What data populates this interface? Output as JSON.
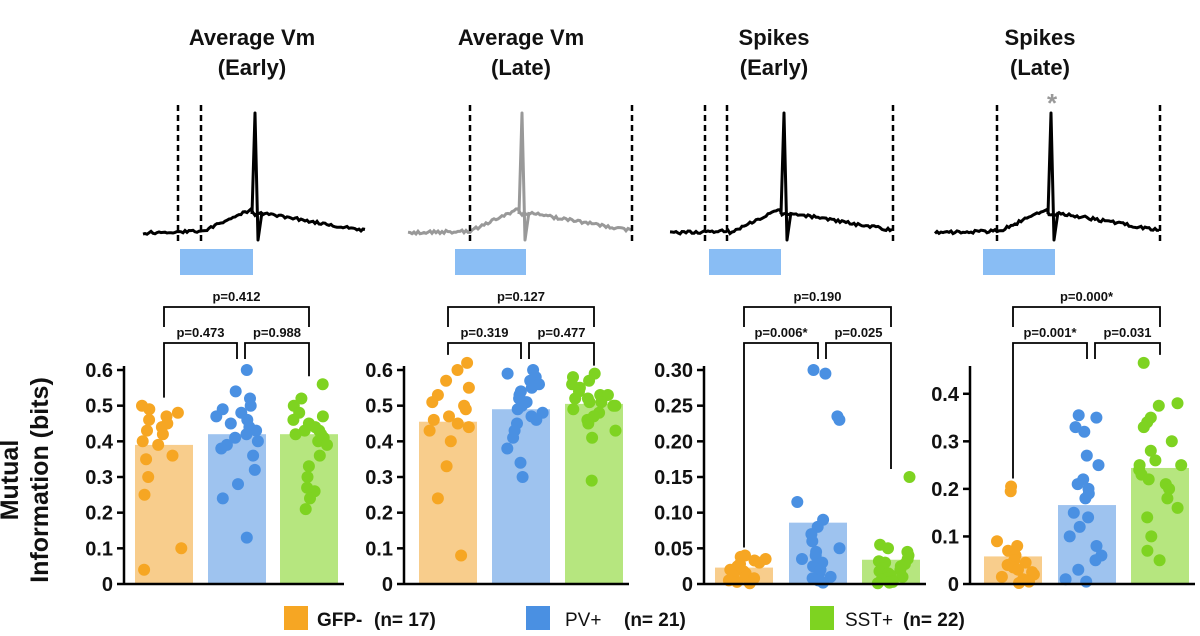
{
  "y_axis_label_line1": "Mutual",
  "y_axis_label_line2": "Information (bits)",
  "groups": [
    {
      "name": "GFP-",
      "n_label": "(n= 17)",
      "color": "#f6a623",
      "bar_color": "#f8cd8c"
    },
    {
      "name": "PV+",
      "n_label": "(n= 21)",
      "color": "#4a90e2",
      "bar_color": "#9ec3ef"
    },
    {
      "name": "SST+",
      "n_label": "(n= 22)",
      "color": "#7ed321",
      "bar_color": "#b6e67f"
    }
  ],
  "panels": [
    {
      "title_line1": "Average Vm",
      "title_line2": "(Early)",
      "trace_color": "#000000",
      "star": ""
    },
    {
      "title_line1": "Average Vm",
      "title_line2": "(Late)",
      "trace_color": "#999999",
      "star": ""
    },
    {
      "title_line1": "Spikes",
      "title_line2": "(Early)",
      "trace_color": "#000000",
      "star": ""
    },
    {
      "title_line1": "Spikes",
      "title_line2": "(Late)",
      "trace_color": "#000000",
      "star": "*"
    }
  ],
  "chart_data": [
    {
      "type": "bar",
      "title": "Average Vm (Early)",
      "ylabel": "Mutual Information (bits)",
      "ylim": [
        0,
        0.6
      ],
      "yticks": [
        "0",
        "0.1",
        "0.2",
        "0.3",
        "0.4",
        "0.5",
        "0.6"
      ],
      "categories": [
        "GFP-",
        "PV+",
        "SST+"
      ],
      "values": [
        0.39,
        0.42,
        0.42
      ],
      "points": [
        [
          0.5,
          0.49,
          0.48,
          0.47,
          0.46,
          0.45,
          0.44,
          0.43,
          0.42,
          0.4,
          0.39,
          0.36,
          0.35,
          0.3,
          0.25,
          0.1,
          0.04
        ],
        [
          0.6,
          0.54,
          0.52,
          0.5,
          0.49,
          0.48,
          0.47,
          0.46,
          0.45,
          0.44,
          0.43,
          0.42,
          0.41,
          0.4,
          0.39,
          0.38,
          0.36,
          0.32,
          0.28,
          0.24,
          0.13
        ],
        [
          0.56,
          0.52,
          0.5,
          0.48,
          0.47,
          0.46,
          0.45,
          0.44,
          0.43,
          0.43,
          0.42,
          0.42,
          0.41,
          0.4,
          0.39,
          0.36,
          0.33,
          0.3,
          0.27,
          0.26,
          0.24,
          0.21
        ]
      ],
      "comparisons": [
        {
          "from": 0,
          "to": 2,
          "label": "p=0.412"
        },
        {
          "from": 0,
          "to": 1,
          "label": "p=0.473"
        },
        {
          "from": 1,
          "to": 2,
          "label": "p=0.988"
        }
      ]
    },
    {
      "type": "bar",
      "title": "Average Vm (Late)",
      "ylabel": "",
      "ylim": [
        0,
        0.6
      ],
      "yticks": [
        "0",
        "0.1",
        "0.2",
        "0.3",
        "0.4",
        "0.5",
        "0.6"
      ],
      "categories": [
        "GFP-",
        "PV+",
        "SST+"
      ],
      "values": [
        0.455,
        0.49,
        0.505
      ],
      "points": [
        [
          0.62,
          0.6,
          0.57,
          0.55,
          0.53,
          0.51,
          0.5,
          0.49,
          0.47,
          0.46,
          0.45,
          0.44,
          0.43,
          0.4,
          0.33,
          0.24,
          0.08
        ],
        [
          0.6,
          0.59,
          0.58,
          0.57,
          0.56,
          0.55,
          0.54,
          0.53,
          0.52,
          0.51,
          0.5,
          0.49,
          0.48,
          0.47,
          0.46,
          0.45,
          0.43,
          0.41,
          0.38,
          0.34,
          0.3
        ],
        [
          0.59,
          0.58,
          0.57,
          0.56,
          0.55,
          0.54,
          0.53,
          0.53,
          0.52,
          0.52,
          0.51,
          0.51,
          0.5,
          0.5,
          0.49,
          0.48,
          0.47,
          0.46,
          0.45,
          0.43,
          0.41,
          0.29
        ]
      ],
      "comparisons": [
        {
          "from": 0,
          "to": 2,
          "label": "p=0.127"
        },
        {
          "from": 0,
          "to": 1,
          "label": "p=0.319"
        },
        {
          "from": 1,
          "to": 2,
          "label": "p=0.477"
        }
      ]
    },
    {
      "type": "bar",
      "title": "Spikes (Early)",
      "ylabel": "",
      "ylim": [
        0,
        0.3
      ],
      "yticks": [
        "0",
        "0.05",
        "0.10",
        "0.15",
        "0.20",
        "0.25",
        "0.30"
      ],
      "categories": [
        "GFP-",
        "PV+",
        "SST+"
      ],
      "values": [
        0.023,
        0.086,
        0.034
      ],
      "points": [
        [
          0.04,
          0.038,
          0.035,
          0.033,
          0.03,
          0.028,
          0.025,
          0.022,
          0.02,
          0.018,
          0.015,
          0.012,
          0.01,
          0.008,
          0.005,
          0.003,
          0.001
        ],
        [
          0.3,
          0.295,
          0.235,
          0.23,
          0.115,
          0.09,
          0.08,
          0.07,
          0.06,
          0.05,
          0.045,
          0.04,
          0.035,
          0.03,
          0.025,
          0.02,
          0.015,
          0.01,
          0.008,
          0.005,
          0.002
        ],
        [
          0.15,
          0.055,
          0.05,
          0.045,
          0.04,
          0.035,
          0.032,
          0.03,
          0.028,
          0.025,
          0.022,
          0.02,
          0.018,
          0.015,
          0.012,
          0.01,
          0.008,
          0.006,
          0.004,
          0.003,
          0.002,
          0.001
        ]
      ],
      "comparisons": [
        {
          "from": 0,
          "to": 2,
          "label": "p=0.190"
        },
        {
          "from": 0,
          "to": 1,
          "label": "p=0.006*"
        },
        {
          "from": 1,
          "to": 2,
          "label": "p=0.025"
        }
      ]
    },
    {
      "type": "bar",
      "title": "Spikes (Late)",
      "ylabel": "",
      "ylim": [
        0,
        0.45
      ],
      "yticks": [
        "0",
        "0.1",
        "0.2",
        "0.3",
        "0.4"
      ],
      "categories": [
        "GFP-",
        "PV+",
        "SST+"
      ],
      "values": [
        0.058,
        0.166,
        0.244
      ],
      "points": [
        [
          0.205,
          0.195,
          0.09,
          0.08,
          0.07,
          0.06,
          0.05,
          0.045,
          0.04,
          0.035,
          0.03,
          0.025,
          0.02,
          0.015,
          0.01,
          0.005,
          0.002
        ],
        [
          0.355,
          0.35,
          0.33,
          0.32,
          0.27,
          0.25,
          0.22,
          0.21,
          0.2,
          0.19,
          0.18,
          0.15,
          0.14,
          0.12,
          0.1,
          0.08,
          0.06,
          0.05,
          0.03,
          0.01,
          0.005
        ],
        [
          0.465,
          0.38,
          0.375,
          0.35,
          0.34,
          0.33,
          0.3,
          0.28,
          0.26,
          0.25,
          0.25,
          0.24,
          0.23,
          0.22,
          0.21,
          0.2,
          0.18,
          0.16,
          0.14,
          0.1,
          0.07,
          0.05
        ]
      ],
      "comparisons": [
        {
          "from": 0,
          "to": 2,
          "label": "p=0.000*"
        },
        {
          "from": 0,
          "to": 1,
          "label": "p=0.001*"
        },
        {
          "from": 1,
          "to": 2,
          "label": "p=0.031"
        }
      ]
    }
  ]
}
